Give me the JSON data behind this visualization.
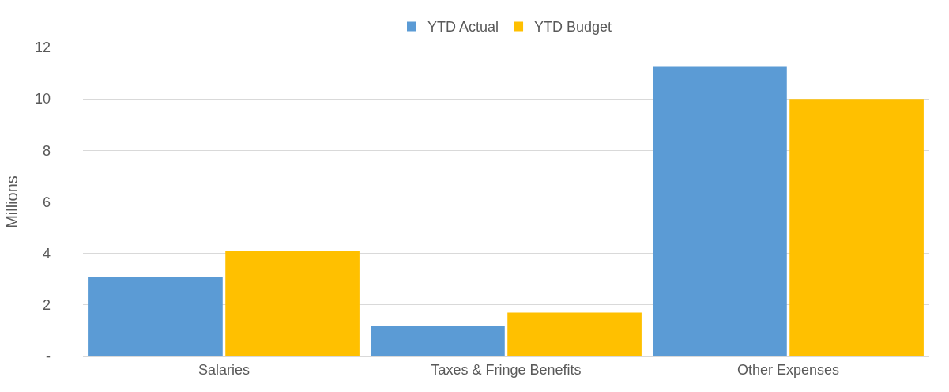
{
  "chart_data": {
    "type": "bar",
    "ylabel": "Millions",
    "categories": [
      "Salaries",
      "Taxes & Fringe Benefits",
      "Other Expenses"
    ],
    "series": [
      {
        "name": "YTD Actual",
        "color": "#5b9bd5",
        "values": [
          3.1,
          1.2,
          11.25
        ]
      },
      {
        "name": "YTD Budget",
        "color": "#ffc000",
        "values": [
          4.1,
          1.7,
          10.0
        ]
      }
    ],
    "ylim": [
      0,
      12
    ],
    "yticks": [
      {
        "value": 0,
        "label": "-"
      },
      2,
      4,
      6,
      8,
      10,
      12
    ],
    "grid": "y",
    "legend": "top"
  }
}
